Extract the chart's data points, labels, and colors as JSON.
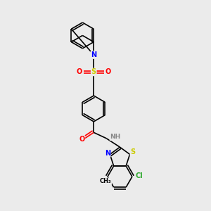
{
  "bg_color": "#ebebeb",
  "bond_color": "#000000",
  "atom_colors": {
    "N": "#0000ff",
    "S": "#cccc00",
    "O": "#ff0000",
    "Cl": "#33aa33",
    "H": "#888888",
    "C": "#000000"
  }
}
